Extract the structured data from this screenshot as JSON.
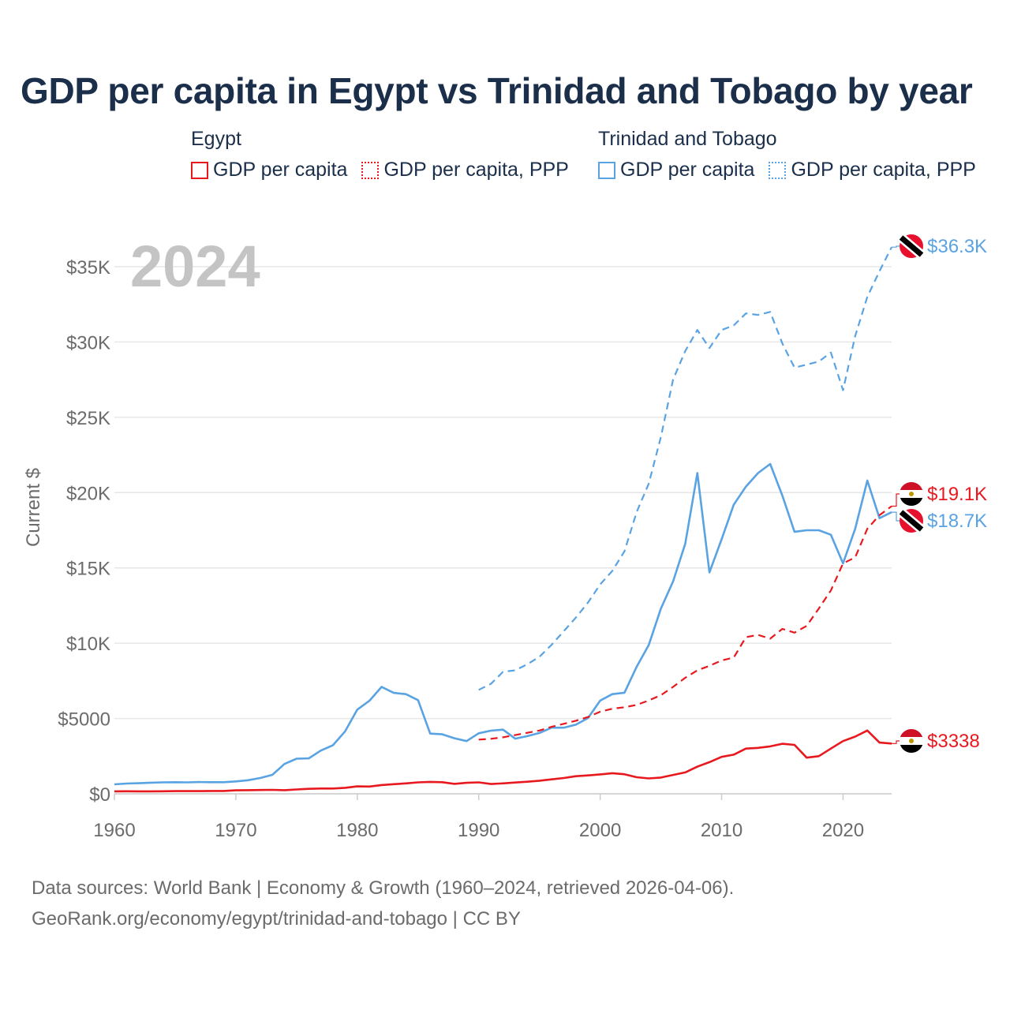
{
  "title": "GDP per capita in Egypt vs Trinidad and Tobago by year",
  "legend": {
    "groups": [
      {
        "name": "Egypt",
        "items": [
          {
            "label": "GDP per capita",
            "style": "solid",
            "color": "#e8191e"
          },
          {
            "label": "GDP per capita, PPP",
            "style": "dashed",
            "color": "#e8191e"
          }
        ]
      },
      {
        "name": "Trinidad and Tobago",
        "items": [
          {
            "label": "GDP per capita",
            "style": "solid",
            "color": "#5aa3e3"
          },
          {
            "label": "GDP per capita, PPP",
            "style": "dashed",
            "color": "#5aa3e3"
          }
        ]
      }
    ]
  },
  "year_watermark": "2024",
  "sources": {
    "line1": "Data sources: World Bank | Economy & Growth (1960–2024, retrieved 2026-04-06).",
    "line2": "GeoRank.org/economy/egypt/trinidad-and-tobago | CC BY"
  },
  "chart_data": {
    "type": "line",
    "title": "GDP per capita in Egypt vs Trinidad and Tobago by year",
    "xlabel": "",
    "ylabel": "Current $",
    "xlim": [
      1960,
      2024
    ],
    "ylim": [
      0,
      37000
    ],
    "x_ticks": [
      1960,
      1970,
      1980,
      1990,
      2000,
      2010,
      2020
    ],
    "y_ticks": [
      {
        "value": 0,
        "label": "$0"
      },
      {
        "value": 5000,
        "label": "$5000"
      },
      {
        "value": 10000,
        "label": "$10K"
      },
      {
        "value": 15000,
        "label": "$15K"
      },
      {
        "value": 20000,
        "label": "$20K"
      },
      {
        "value": 25000,
        "label": "$25K"
      },
      {
        "value": 30000,
        "label": "$30K"
      },
      {
        "value": 35000,
        "label": "$35K"
      }
    ],
    "grid": true,
    "series": [
      {
        "name": "Trinidad and Tobago GDP per capita, PPP",
        "color": "#5aa3e3",
        "dashed": true,
        "end_label": "$36.3K",
        "x": [
          1990,
          1991,
          1992,
          1993,
          1994,
          1995,
          1996,
          1997,
          1998,
          1999,
          2000,
          2001,
          2002,
          2003,
          2004,
          2005,
          2006,
          2007,
          2008,
          2009,
          2010,
          2011,
          2012,
          2013,
          2014,
          2015,
          2016,
          2017,
          2018,
          2019,
          2020,
          2021,
          2022,
          2023,
          2024
        ],
        "values": [
          6900,
          7300,
          8100,
          8200,
          8600,
          9100,
          9900,
          10800,
          11700,
          12700,
          13900,
          14800,
          16100,
          18700,
          20600,
          23700,
          27500,
          29400,
          30800,
          29600,
          30800,
          31100,
          31900,
          31800,
          32000,
          29900,
          28300,
          28500,
          28700,
          29300,
          26800,
          30400,
          33000,
          34700,
          36300
        ]
      },
      {
        "name": "Trinidad and Tobago GDP per capita",
        "color": "#5aa3e3",
        "dashed": false,
        "end_label": "$18.7K",
        "x": [
          1960,
          1961,
          1962,
          1963,
          1964,
          1965,
          1966,
          1967,
          1968,
          1969,
          1970,
          1971,
          1972,
          1973,
          1974,
          1975,
          1976,
          1977,
          1978,
          1979,
          1980,
          1981,
          1982,
          1983,
          1984,
          1985,
          1986,
          1987,
          1988,
          1989,
          1990,
          1991,
          1992,
          1993,
          1994,
          1995,
          1996,
          1997,
          1998,
          1999,
          2000,
          2001,
          2002,
          2003,
          2004,
          2005,
          2006,
          2007,
          2008,
          2009,
          2010,
          2011,
          2012,
          2013,
          2014,
          2015,
          2016,
          2017,
          2018,
          2019,
          2020,
          2021,
          2022,
          2023,
          2024
        ],
        "values": [
          630,
          680,
          700,
          740,
          760,
          770,
          760,
          780,
          770,
          770,
          820,
          900,
          1050,
          1260,
          1980,
          2330,
          2350,
          2870,
          3230,
          4150,
          5590,
          6180,
          7100,
          6700,
          6620,
          6220,
          4000,
          3950,
          3690,
          3500,
          4020,
          4190,
          4260,
          3660,
          3830,
          4040,
          4390,
          4390,
          4590,
          5030,
          6190,
          6620,
          6710,
          8430,
          9880,
          12300,
          14100,
          16600,
          21300,
          14700,
          16900,
          19200,
          20400,
          21300,
          21900,
          19800,
          17400,
          17500,
          17500,
          17200,
          15300,
          17600,
          20800,
          18300,
          18700
        ]
      },
      {
        "name": "Egypt GDP per capita, PPP",
        "color": "#e8191e",
        "dashed": true,
        "end_label": "$19.1K",
        "x": [
          1990,
          1991,
          1992,
          1993,
          1994,
          1995,
          1996,
          1997,
          1998,
          1999,
          2000,
          2001,
          2002,
          2003,
          2004,
          2005,
          2006,
          2007,
          2008,
          2009,
          2010,
          2011,
          2012,
          2013,
          2014,
          2015,
          2016,
          2017,
          2018,
          2019,
          2020,
          2021,
          2022,
          2023,
          2024
        ],
        "values": [
          3600,
          3650,
          3750,
          3900,
          4050,
          4200,
          4450,
          4650,
          4850,
          5100,
          5450,
          5650,
          5750,
          5900,
          6200,
          6550,
          7100,
          7700,
          8200,
          8500,
          8850,
          9050,
          10400,
          10550,
          10300,
          10950,
          10700,
          11150,
          12300,
          13500,
          15300,
          15700,
          17600,
          18500,
          19100
        ]
      },
      {
        "name": "Egypt GDP per capita",
        "color": "#e8191e",
        "dashed": false,
        "end_label": "$3338",
        "x": [
          1960,
          1961,
          1962,
          1963,
          1964,
          1965,
          1966,
          1967,
          1968,
          1969,
          1970,
          1971,
          1972,
          1973,
          1974,
          1975,
          1976,
          1977,
          1978,
          1979,
          1980,
          1981,
          1982,
          1983,
          1984,
          1985,
          1986,
          1987,
          1988,
          1989,
          1990,
          1991,
          1992,
          1993,
          1994,
          1995,
          1996,
          1997,
          1998,
          1999,
          2000,
          2001,
          2002,
          2003,
          2004,
          2005,
          2006,
          2007,
          2008,
          2009,
          2010,
          2011,
          2012,
          2013,
          2014,
          2015,
          2016,
          2017,
          2018,
          2019,
          2020,
          2021,
          2022,
          2023,
          2024
        ],
        "values": [
          160,
          170,
          160,
          160,
          170,
          180,
          180,
          180,
          190,
          190,
          230,
          240,
          250,
          260,
          240,
          290,
          330,
          350,
          350,
          400,
          490,
          480,
          580,
          640,
          690,
          760,
          790,
          770,
          660,
          730,
          760,
          650,
          690,
          750,
          800,
          870,
          960,
          1050,
          1170,
          1220,
          1290,
          1370,
          1300,
          1100,
          1020,
          1080,
          1250,
          1420,
          1800,
          2100,
          2450,
          2600,
          3000,
          3050,
          3150,
          3320,
          3250,
          2400,
          2500,
          3000,
          3500,
          3800,
          4200,
          3400,
          3338
        ]
      }
    ]
  }
}
